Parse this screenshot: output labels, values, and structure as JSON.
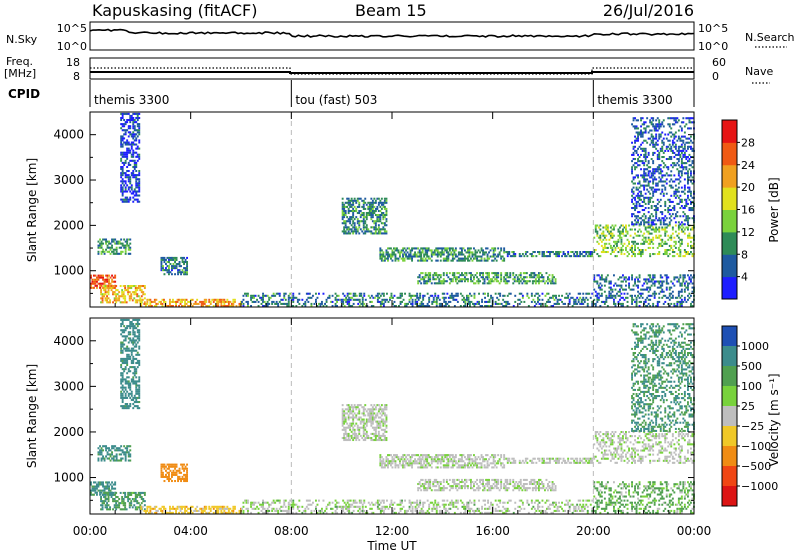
{
  "header": {
    "radar": "Kapuskasing (fitACF)",
    "beam": "Beam 15",
    "date": "26/Jul/2016"
  },
  "chart_data": {
    "type": "heatmap",
    "xlabel": "Time UT",
    "x_ticks": [
      "00:00",
      "04:00",
      "08:00",
      "12:00",
      "16:00",
      "20:00",
      "00:00"
    ],
    "x_tick_hours": [
      0,
      4,
      8,
      12,
      16,
      20,
      24
    ],
    "xlim_hours": [
      0,
      24
    ],
    "panels": {
      "nsky": {
        "label": "N.Sky",
        "right_label": "N.Search",
        "y_ticks": [
          "10^5",
          "10^0"
        ],
        "right_ticks": [
          "10^5",
          "10^0"
        ]
      },
      "freq": {
        "label": "Freq.",
        "unit": "[MHz]",
        "y_ticks": [
          "18",
          "8"
        ],
        "right_label": "Nave",
        "right_ticks": [
          "60",
          "0"
        ]
      },
      "cpid": {
        "label": "CPID",
        "segments": [
          {
            "label": "themis 3300",
            "start": 0,
            "end": 8
          },
          {
            "label": "tou (fast) 503",
            "start": 8,
            "end": 20
          },
          {
            "label": "themis 3300",
            "start": 20,
            "end": 24
          }
        ]
      },
      "power": {
        "ylabel": "Slant Range [km]",
        "ylim": [
          200,
          4500
        ],
        "y_ticks": [
          1000,
          2000,
          3000,
          4000
        ],
        "colorbar_label": "Power [dB]",
        "colorbar_ticks": [
          "4",
          "8",
          "12",
          "16",
          "20",
          "24",
          "28"
        ],
        "colorbar_colors": [
          "#1e1eff",
          "#1e5aa0",
          "#2e8b57",
          "#7ad23c",
          "#e1e11e",
          "#f0a020",
          "#f05a14",
          "#e61414"
        ]
      },
      "velocity": {
        "ylabel": "Slant Range [km]",
        "ylim": [
          200,
          4500
        ],
        "y_ticks": [
          1000,
          2000,
          3000,
          4000
        ],
        "colorbar_label": "Velocity [m s⁻¹]",
        "colorbar_ticks": [
          "1000",
          "500",
          "100",
          "25",
          "−25",
          "−100",
          "−500",
          "−1000"
        ],
        "colorbar_colors": [
          "#1e50b4",
          "#3c8c8c",
          "#50a050",
          "#78d23c",
          "#bebebe",
          "#f0c828",
          "#f08c14",
          "#f04614",
          "#dc1414"
        ]
      }
    },
    "echo_regions": [
      {
        "t0": 0.0,
        "t1": 1.0,
        "r0": 600,
        "r1": 900,
        "power": 27,
        "vel": 150
      },
      {
        "t0": 0.4,
        "t1": 2.2,
        "r0": 280,
        "r1": 700,
        "power": 20,
        "vel": 80
      },
      {
        "t0": 2.0,
        "t1": 6.0,
        "r0": 200,
        "r1": 400,
        "power": 22,
        "vel": -60
      },
      {
        "t0": 6.0,
        "t1": 20.0,
        "r0": 200,
        "r1": 500,
        "power": 8,
        "vel": 5
      },
      {
        "t0": 0.3,
        "t1": 1.6,
        "r0": 1350,
        "r1": 1700,
        "power": 10,
        "vel": 150
      },
      {
        "t0": 2.8,
        "t1": 3.9,
        "r0": 900,
        "r1": 1300,
        "power": 8,
        "vel": -300
      },
      {
        "t0": 1.2,
        "t1": 2.0,
        "r0": 2500,
        "r1": 4500,
        "power": 4,
        "vel": 200
      },
      {
        "t0": 10.0,
        "t1": 11.8,
        "r0": 1800,
        "r1": 2600,
        "power": 9,
        "vel": 0
      },
      {
        "t0": 11.5,
        "t1": 16.5,
        "r0": 1200,
        "r1": 1500,
        "power": 10,
        "vel": 0
      },
      {
        "t0": 13.0,
        "t1": 18.5,
        "r0": 700,
        "r1": 950,
        "power": 11,
        "vel": 0
      },
      {
        "t0": 16.5,
        "t1": 20.0,
        "r0": 1300,
        "r1": 1450,
        "power": 8,
        "vel": 0
      },
      {
        "t0": 20.0,
        "t1": 24.0,
        "r0": 1300,
        "r1": 2000,
        "power": 14,
        "vel": 0
      },
      {
        "t0": 21.5,
        "t1": 24.0,
        "r0": 2000,
        "r1": 4400,
        "power": 6,
        "vel": 100
      },
      {
        "t0": 20.0,
        "t1": 24.0,
        "r0": 200,
        "r1": 900,
        "power": 7,
        "vel": 40
      }
    ]
  }
}
